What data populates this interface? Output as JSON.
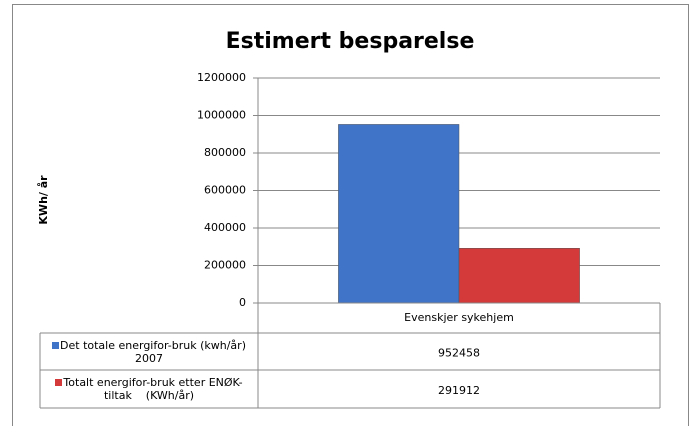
{
  "chart_data": {
    "type": "bar",
    "title": "Estimert besparelse",
    "y_label": "KWh/ år",
    "categories": [
      "Evenskjer sykehjem"
    ],
    "series": [
      {
        "name": "Det totale energifor-bruk (kwh/år) 2007",
        "color": "#3f74c8",
        "values": [
          952458
        ]
      },
      {
        "name": "Totalt energifor-bruk etter ENØK-tiltak    (KWh/år)",
        "color": "#d43a3a",
        "values": [
          291912
        ]
      }
    ],
    "ylim": [
      0,
      1200000
    ],
    "yticks": [
      0,
      200000,
      400000,
      600000,
      800000,
      1000000,
      1200000
    ],
    "grid": true,
    "data_table": true
  }
}
